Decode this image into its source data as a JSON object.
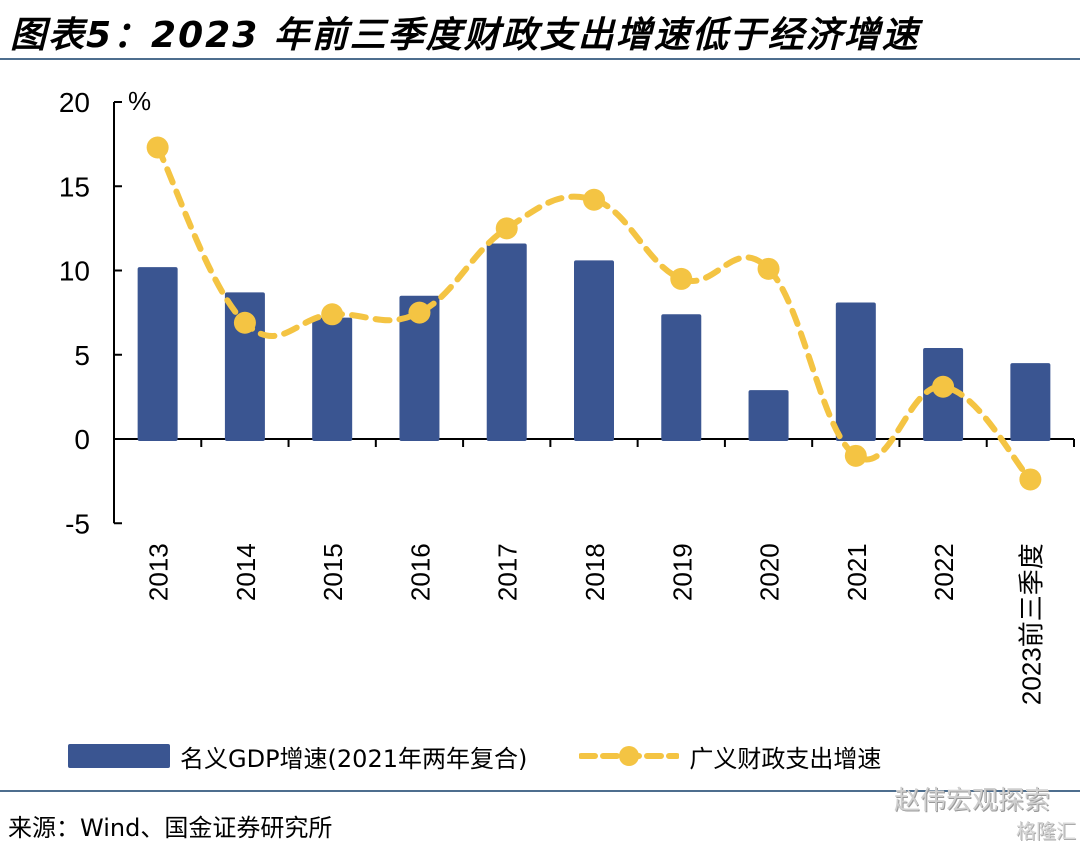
{
  "title": "图表5：2023 年前三季度财政支出增速低于经济增速",
  "source": "来源：Wind、国金证券研究所",
  "watermark": "赵伟宏观探索",
  "watermark2": "格隆汇",
  "colors": {
    "bar": "#3a5591",
    "line": "#f4c443",
    "rule": "#4e6e8e"
  },
  "chart_data": {
    "type": "bar+line",
    "title": "2023 年前三季度财政支出增速低于经济增速",
    "unit_label": "%",
    "xlabel": "",
    "ylabel": "%",
    "ylim": [
      -5,
      20
    ],
    "yticks": [
      -5,
      0,
      5,
      10,
      15,
      20
    ],
    "grid": false,
    "legend_position": "bottom",
    "categories": [
      "2013",
      "2014",
      "2015",
      "2016",
      "2017",
      "2018",
      "2019",
      "2020",
      "2021",
      "2022",
      "2023前三季度"
    ],
    "series": [
      {
        "name": "名义GDP增速(2021年两年复合)",
        "type": "bar",
        "values": [
          10.2,
          8.7,
          7.2,
          8.5,
          11.6,
          10.6,
          7.4,
          2.9,
          8.1,
          5.4,
          4.5
        ]
      },
      {
        "name": "广义财政支出增速",
        "type": "line",
        "style": "dashed-smooth-with-markers",
        "values": [
          17.3,
          6.9,
          7.4,
          7.5,
          12.5,
          14.2,
          9.5,
          10.1,
          -1.0,
          3.1,
          -2.4
        ]
      }
    ]
  }
}
